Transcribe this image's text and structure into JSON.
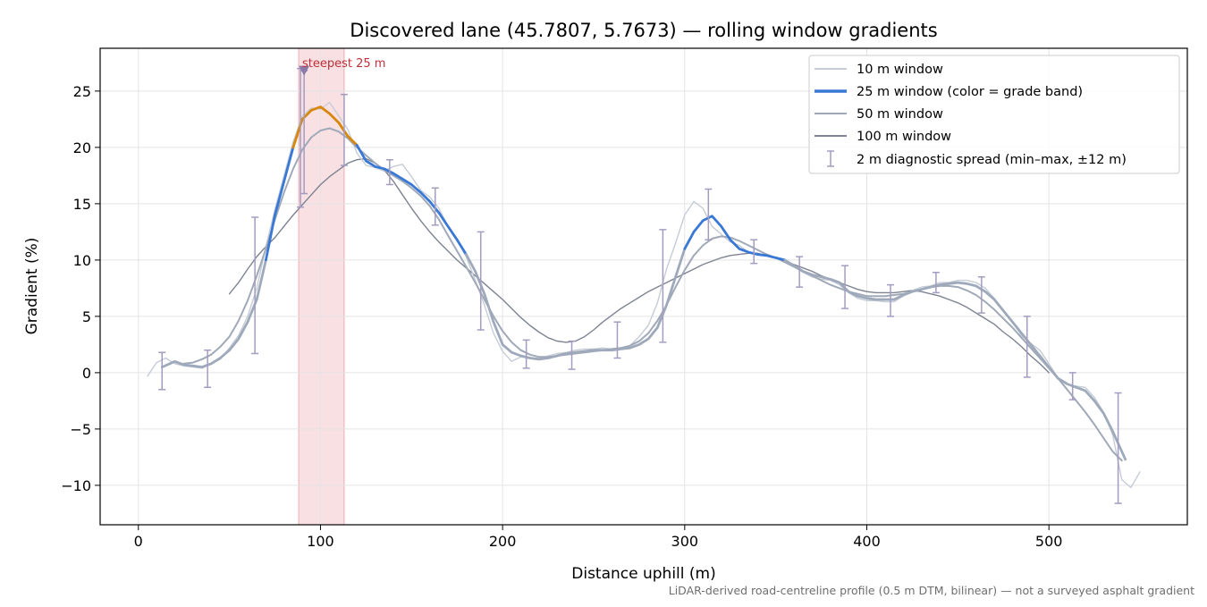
{
  "chart_data": {
    "type": "line",
    "title": "Discovered lane (45.7807, 5.7673) — rolling window gradients",
    "xlabel": "Distance uphill (m)",
    "ylabel": "Gradient (%)",
    "footnote": "LiDAR-derived road-centreline profile (0.5 m DTM, bilinear) — not a surveyed asphalt gradient",
    "xlim": [
      -21,
      576
    ],
    "ylim": [
      -13.5,
      28.8
    ],
    "xticks": [
      0,
      100,
      200,
      300,
      400,
      500
    ],
    "yticks": [
      -10,
      -5,
      0,
      5,
      10,
      15,
      20,
      25
    ],
    "grid": true,
    "legend_position": "top-right",
    "steepest_band": {
      "x": [
        88,
        113
      ],
      "label": "steepest 25 m",
      "marker": [
        91,
        27
      ]
    },
    "grade_band_colors": {
      "default": "#3a78d6",
      "steep": "#d8870a"
    },
    "series": [
      {
        "name": "10 m window",
        "color": "#c6ccd6",
        "x": [
          5,
          10,
          15,
          20,
          25,
          30,
          35,
          40,
          45,
          50,
          55,
          60,
          65,
          70,
          75,
          80,
          85,
          90,
          95,
          100,
          105,
          110,
          115,
          120,
          125,
          130,
          135,
          140,
          145,
          150,
          155,
          160,
          165,
          170,
          175,
          180,
          185,
          190,
          195,
          200,
          205,
          210,
          215,
          220,
          225,
          230,
          235,
          240,
          245,
          250,
          255,
          260,
          265,
          270,
          275,
          280,
          285,
          290,
          295,
          300,
          305,
          310,
          315,
          320,
          325,
          330,
          335,
          340,
          345,
          350,
          355,
          360,
          365,
          370,
          375,
          380,
          385,
          390,
          395,
          400,
          405,
          410,
          415,
          420,
          425,
          430,
          435,
          440,
          445,
          450,
          455,
          460,
          465,
          470,
          475,
          480,
          485,
          490,
          495,
          500,
          505,
          510,
          515,
          520,
          525,
          530,
          535,
          540,
          545,
          550
        ],
        "y": [
          -0.3,
          0.9,
          1.3,
          0.8,
          0.6,
          0.5,
          0.4,
          0.8,
          1.2,
          2.2,
          3.3,
          5.0,
          7.5,
          11.2,
          14.5,
          17.5,
          20.5,
          22.8,
          23.5,
          23.4,
          24.0,
          22.8,
          21.6,
          19.5,
          18.4,
          18.2,
          17.9,
          18.3,
          18.5,
          17.4,
          16.2,
          15.6,
          14.6,
          13.0,
          11.8,
          10.3,
          8.2,
          6.0,
          3.5,
          1.9,
          1.0,
          1.4,
          1.3,
          1.2,
          1.5,
          1.7,
          1.8,
          2.0,
          2.1,
          2.1,
          2.2,
          2.1,
          2.1,
          2.4,
          3.2,
          4.2,
          6.2,
          9.2,
          11.5,
          14.0,
          15.2,
          14.6,
          13.0,
          12.3,
          11.6,
          11.3,
          10.7,
          10.5,
          10.5,
          10.2,
          10.0,
          9.4,
          8.9,
          8.5,
          8.3,
          8.2,
          7.8,
          7.1,
          6.6,
          6.4,
          6.4,
          6.3,
          6.3,
          6.8,
          7.3,
          7.6,
          7.7,
          8.0,
          8.0,
          8.2,
          8.2,
          8.0,
          7.5,
          6.6,
          5.5,
          4.5,
          3.3,
          2.6,
          2.0,
          0.8,
          -0.5,
          -1.0,
          -1.2,
          -1.3,
          -2.2,
          -3.5,
          -5.5,
          -9.5,
          -10.2,
          -8.8
        ]
      },
      {
        "name": "25 m window (color = grade band)",
        "color": "#3a78d6",
        "x": [
          13,
          20,
          25,
          30,
          35,
          40,
          45,
          50,
          55,
          60,
          65,
          70,
          75,
          80,
          85,
          90,
          95,
          100,
          105,
          110,
          115,
          120,
          125,
          130,
          135,
          140,
          145,
          150,
          155,
          160,
          165,
          170,
          175,
          180,
          185,
          190,
          195,
          200,
          205,
          210,
          215,
          220,
          225,
          230,
          235,
          240,
          245,
          250,
          255,
          260,
          265,
          270,
          275,
          280,
          285,
          290,
          295,
          300,
          305,
          310,
          315,
          320,
          325,
          330,
          335,
          340,
          345,
          350,
          355,
          360,
          365,
          370,
          375,
          380,
          385,
          390,
          395,
          400,
          405,
          410,
          415,
          420,
          425,
          430,
          435,
          440,
          445,
          450,
          455,
          460,
          465,
          470,
          475,
          480,
          485,
          490,
          495,
          500,
          505,
          510,
          515,
          520,
          525,
          530,
          535,
          542
        ],
        "y": [
          0.5,
          1.0,
          0.7,
          0.6,
          0.5,
          0.8,
          1.3,
          2.0,
          3.0,
          4.5,
          6.5,
          10.0,
          14.0,
          17.0,
          20.0,
          22.5,
          23.3,
          23.6,
          23.0,
          22.2,
          21.0,
          20.2,
          18.8,
          18.3,
          18.1,
          17.7,
          17.2,
          16.7,
          16.0,
          15.2,
          14.2,
          13.0,
          11.8,
          10.5,
          9.0,
          7.0,
          4.5,
          2.5,
          1.8,
          1.5,
          1.3,
          1.2,
          1.3,
          1.5,
          1.7,
          1.8,
          1.9,
          2.0,
          2.0,
          2.0,
          2.1,
          2.2,
          2.5,
          3.0,
          4.0,
          6.0,
          8.5,
          11.0,
          12.5,
          13.5,
          13.9,
          13.0,
          11.8,
          11.0,
          10.7,
          10.5,
          10.4,
          10.2,
          10.0,
          9.5,
          9.0,
          8.7,
          8.5,
          8.3,
          8.0,
          7.2,
          6.8,
          6.6,
          6.5,
          6.5,
          6.5,
          6.9,
          7.2,
          7.4,
          7.6,
          7.8,
          7.9,
          8.0,
          7.9,
          7.7,
          7.2,
          6.5,
          5.5,
          4.5,
          3.5,
          2.5,
          1.5,
          0.5,
          -0.5,
          -1.0,
          -1.3,
          -1.6,
          -2.5,
          -3.6,
          -5.2,
          -7.7
        ]
      },
      {
        "name": "50 m window",
        "color": "#a0a9b8",
        "x": [
          25,
          30,
          35,
          40,
          45,
          50,
          55,
          60,
          65,
          70,
          75,
          80,
          85,
          90,
          95,
          100,
          105,
          110,
          115,
          120,
          125,
          130,
          135,
          140,
          145,
          150,
          155,
          160,
          165,
          170,
          175,
          180,
          185,
          190,
          195,
          200,
          205,
          210,
          215,
          220,
          225,
          230,
          235,
          240,
          245,
          250,
          255,
          260,
          265,
          270,
          275,
          280,
          285,
          290,
          295,
          300,
          305,
          310,
          315,
          320,
          325,
          330,
          335,
          340,
          345,
          350,
          355,
          360,
          365,
          370,
          375,
          380,
          385,
          390,
          395,
          400,
          405,
          410,
          415,
          420,
          425,
          430,
          435,
          440,
          445,
          450,
          455,
          460,
          465,
          470,
          475,
          480,
          485,
          490,
          495,
          500,
          505,
          510,
          515,
          520,
          525,
          530,
          535,
          540
        ],
        "y": [
          0.8,
          0.9,
          1.2,
          1.6,
          2.3,
          3.2,
          4.6,
          6.4,
          8.6,
          11.0,
          13.6,
          16.0,
          18.1,
          19.8,
          20.9,
          21.5,
          21.7,
          21.4,
          20.8,
          20.0,
          19.3,
          18.6,
          18.0,
          17.5,
          17.0,
          16.4,
          15.7,
          14.8,
          13.6,
          12.2,
          10.8,
          9.4,
          8.0,
          6.5,
          5.0,
          3.7,
          2.7,
          2.0,
          1.6,
          1.4,
          1.4,
          1.5,
          1.6,
          1.7,
          1.8,
          1.9,
          2.0,
          2.1,
          2.2,
          2.4,
          2.8,
          3.5,
          4.6,
          6.0,
          7.6,
          9.1,
          10.4,
          11.3,
          11.9,
          12.1,
          12.0,
          11.7,
          11.3,
          10.9,
          10.5,
          10.2,
          9.8,
          9.4,
          9.0,
          8.6,
          8.2,
          7.8,
          7.5,
          7.2,
          7.0,
          6.8,
          6.8,
          6.8,
          6.9,
          7.0,
          7.2,
          7.4,
          7.6,
          7.7,
          7.7,
          7.6,
          7.3,
          6.9,
          6.3,
          5.6,
          4.8,
          4.0,
          3.1,
          2.2,
          1.3,
          0.4,
          -0.5,
          -1.5,
          -2.5,
          -3.5,
          -4.6,
          -5.8,
          -7.0,
          -7.8
        ]
      },
      {
        "name": "100 m window",
        "color": "#7d8392",
        "x": [
          50,
          55,
          60,
          65,
          70,
          75,
          80,
          85,
          90,
          95,
          100,
          105,
          110,
          115,
          120,
          125,
          130,
          135,
          140,
          145,
          150,
          155,
          160,
          165,
          170,
          175,
          180,
          185,
          190,
          195,
          200,
          205,
          210,
          215,
          220,
          225,
          230,
          235,
          240,
          245,
          250,
          255,
          260,
          265,
          270,
          275,
          280,
          285,
          290,
          295,
          300,
          305,
          310,
          315,
          320,
          325,
          330,
          335,
          340,
          345,
          350,
          355,
          360,
          365,
          370,
          375,
          380,
          385,
          390,
          395,
          400,
          405,
          410,
          415,
          420,
          425,
          430,
          435,
          440,
          445,
          450,
          455,
          460,
          465,
          470,
          475,
          480,
          485,
          490,
          495,
          500
        ],
        "y": [
          7.0,
          8.0,
          9.2,
          10.3,
          11.2,
          12.0,
          13.0,
          14.0,
          14.9,
          15.8,
          16.7,
          17.4,
          18.0,
          18.6,
          18.9,
          19.0,
          18.6,
          18.0,
          17.0,
          15.8,
          14.6,
          13.5,
          12.5,
          11.6,
          10.8,
          10.0,
          9.3,
          8.6,
          7.9,
          7.2,
          6.5,
          5.7,
          4.9,
          4.2,
          3.6,
          3.1,
          2.8,
          2.7,
          2.8,
          3.2,
          3.8,
          4.5,
          5.1,
          5.7,
          6.2,
          6.7,
          7.2,
          7.6,
          8.0,
          8.4,
          8.8,
          9.2,
          9.6,
          9.9,
          10.2,
          10.4,
          10.5,
          10.6,
          10.6,
          10.4,
          10.2,
          9.9,
          9.6,
          9.3,
          9.0,
          8.6,
          8.3,
          8.0,
          7.7,
          7.4,
          7.2,
          7.1,
          7.1,
          7.1,
          7.2,
          7.3,
          7.2,
          7.0,
          6.8,
          6.5,
          6.2,
          5.8,
          5.3,
          4.8,
          4.3,
          3.6,
          3.0,
          2.3,
          1.5,
          0.8,
          0.0
        ]
      }
    ],
    "error_bars": {
      "name": "2 m diagnostic spread (min–max, ±12 m)",
      "color": "#a49cc0",
      "points": [
        {
          "x": 13,
          "min": -1.5,
          "max": 1.8
        },
        {
          "x": 38,
          "min": -1.3,
          "max": 2.0
        },
        {
          "x": 64,
          "min": 1.7,
          "max": 13.8
        },
        {
          "x": 89,
          "min": 14.7,
          "max": 27.0
        },
        {
          "x": 91,
          "min": 15.9,
          "max": 26.8
        },
        {
          "x": 113,
          "min": 18.4,
          "max": 24.7
        },
        {
          "x": 138,
          "min": 16.7,
          "max": 18.9
        },
        {
          "x": 163,
          "min": 13.1,
          "max": 16.4
        },
        {
          "x": 188,
          "min": 3.8,
          "max": 12.5
        },
        {
          "x": 213,
          "min": 0.4,
          "max": 2.9
        },
        {
          "x": 238,
          "min": 0.3,
          "max": 2.8
        },
        {
          "x": 263,
          "min": 1.3,
          "max": 4.5
        },
        {
          "x": 288,
          "min": 2.7,
          "max": 12.7
        },
        {
          "x": 313,
          "min": 11.8,
          "max": 16.3
        },
        {
          "x": 338,
          "min": 9.7,
          "max": 11.8
        },
        {
          "x": 363,
          "min": 7.6,
          "max": 10.3
        },
        {
          "x": 388,
          "min": 5.7,
          "max": 9.5
        },
        {
          "x": 413,
          "min": 5.0,
          "max": 7.8
        },
        {
          "x": 438,
          "min": 7.1,
          "max": 8.9
        },
        {
          "x": 463,
          "min": 5.3,
          "max": 8.5
        },
        {
          "x": 488,
          "min": -0.4,
          "max": 5.0
        },
        {
          "x": 513,
          "min": -2.4,
          "max": 0.0
        },
        {
          "x": 538,
          "min": -11.6,
          "max": -1.8
        }
      ]
    }
  }
}
